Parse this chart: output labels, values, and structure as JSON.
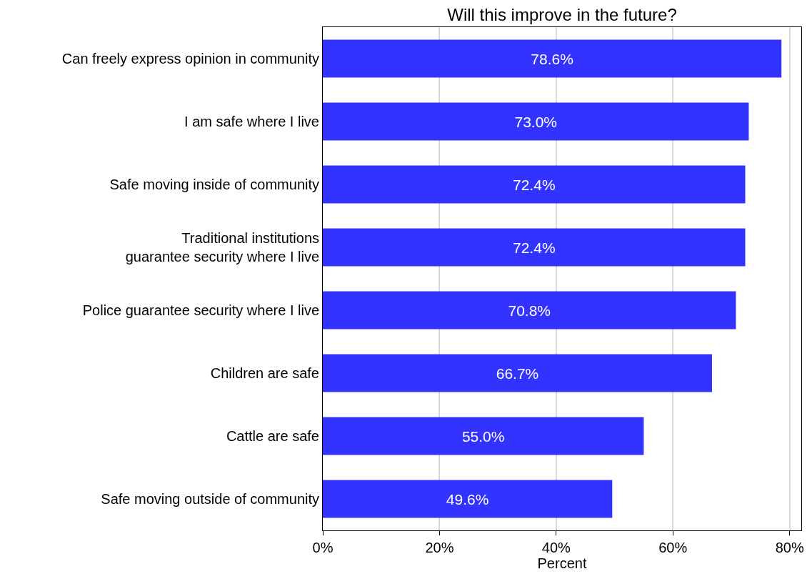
{
  "chart_data": {
    "type": "bar",
    "orientation": "horizontal",
    "title": "Will this improve in the future?",
    "xlabel": "Percent",
    "categories": [
      "Can freely express opinion in community",
      "I am safe where I live",
      "Safe moving inside of community",
      "Traditional institutions\nguarantee security where I live",
      "Police guarantee security where I live",
      "Children are safe",
      "Cattle are safe",
      "Safe moving outside of community"
    ],
    "values": [
      78.6,
      73.0,
      72.4,
      72.4,
      70.8,
      66.7,
      55.0,
      49.6
    ],
    "value_labels": [
      "78.6%",
      "73.0%",
      "72.4%",
      "72.4%",
      "70.8%",
      "66.7%",
      "55.0%",
      "49.6%"
    ],
    "color": "#3333ff",
    "xlim": [
      0,
      82
    ],
    "xticks": [
      {
        "value": 0,
        "label": "0%"
      },
      {
        "value": 20,
        "label": "20%"
      },
      {
        "value": 40,
        "label": "40%"
      },
      {
        "value": 60,
        "label": "60%"
      },
      {
        "value": 80,
        "label": "80%"
      }
    ],
    "grid": "x"
  }
}
